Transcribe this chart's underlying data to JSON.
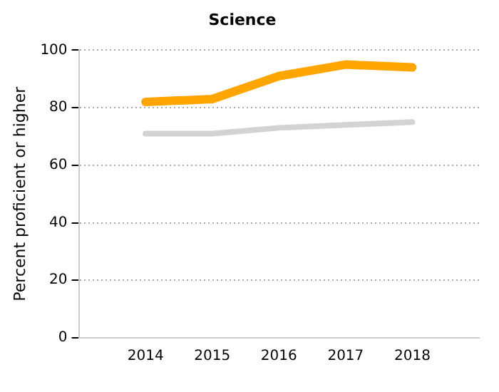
{
  "chart_data": {
    "type": "line",
    "title": "Science",
    "ylabel": "Percent proficient or higher",
    "x": [
      2014,
      2015,
      2016,
      2017,
      2018
    ],
    "xlim": [
      2013,
      2019
    ],
    "xticks": [
      2014,
      2015,
      2016,
      2017,
      2018
    ],
    "ylim": [
      0,
      100
    ],
    "yticks": [
      0,
      20,
      40,
      60,
      80,
      100
    ],
    "grid": "y",
    "legend": false,
    "marker": "none",
    "line_style": "solid",
    "series": [
      {
        "color": "#ffa500",
        "values": [
          82,
          83,
          91,
          95,
          94
        ]
      },
      {
        "color": "#d3d3d3",
        "values": [
          71,
          71,
          73,
          74,
          75
        ]
      }
    ]
  }
}
